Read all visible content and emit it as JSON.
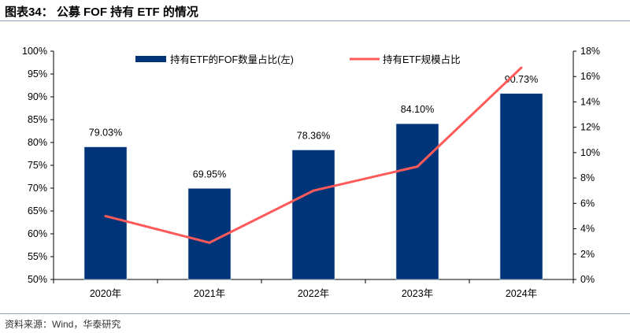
{
  "title": "图表34：  公募 FOF 持有 ETF 的情况",
  "source": "资料来源：Wind，华泰研究",
  "chart_data": {
    "type": "bar+line",
    "categories": [
      "2020年",
      "2021年",
      "2022年",
      "2023年",
      "2024年"
    ],
    "series": [
      {
        "name": "持有ETF的FOF数量占比(左)",
        "type": "bar",
        "axis": "left",
        "color": "#003478",
        "values": [
          79.03,
          69.95,
          78.36,
          84.1,
          90.73
        ],
        "labels": [
          "79.03%",
          "69.95%",
          "78.36%",
          "84.10%",
          "90.73%"
        ]
      },
      {
        "name": "持有ETF规模占比",
        "type": "line",
        "axis": "right",
        "color": "#ff5a5a",
        "values": [
          5.0,
          2.9,
          7.0,
          8.9,
          16.7
        ]
      }
    ],
    "left_axis": {
      "min": 50,
      "max": 100,
      "step": 5,
      "ticks": [
        "50%",
        "55%",
        "60%",
        "65%",
        "70%",
        "75%",
        "80%",
        "85%",
        "90%",
        "95%",
        "100%"
      ]
    },
    "right_axis": {
      "min": 0,
      "max": 18,
      "step": 2,
      "ticks": [
        "0%",
        "2%",
        "4%",
        "6%",
        "8%",
        "10%",
        "12%",
        "14%",
        "16%",
        "18%"
      ]
    },
    "grid": false,
    "legend": "top"
  }
}
